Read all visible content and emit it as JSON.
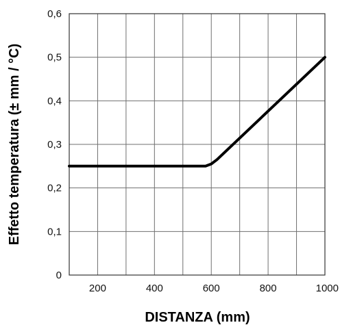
{
  "chart_data": {
    "type": "line",
    "title": "",
    "xlabel": "DISTANZA (mm)",
    "ylabel": "Effetto temperatura (± mm / °C)",
    "xlim": [
      100,
      1000
    ],
    "ylim": [
      0,
      0.6
    ],
    "x_ticks": [
      200,
      400,
      600,
      800,
      1000
    ],
    "x_tick_labels": [
      "200",
      "400",
      "600",
      "800",
      "1000"
    ],
    "y_ticks": [
      0,
      0.1,
      0.2,
      0.3,
      0.4,
      0.5,
      0.6
    ],
    "y_tick_labels": [
      "0",
      "0,1",
      "0,2",
      "0,3",
      "0,4",
      "0,5",
      "0,6"
    ],
    "x_grid_lines": [
      200,
      300,
      400,
      500,
      600,
      700,
      800,
      900
    ],
    "grid": true,
    "series": [
      {
        "x": [
          100,
          580,
          600,
          620,
          1000
        ],
        "y": [
          0.25,
          0.25,
          0.255,
          0.265,
          0.5
        ]
      }
    ],
    "colors": {
      "line": "#000000",
      "grid": "#6f6f6f"
    }
  }
}
